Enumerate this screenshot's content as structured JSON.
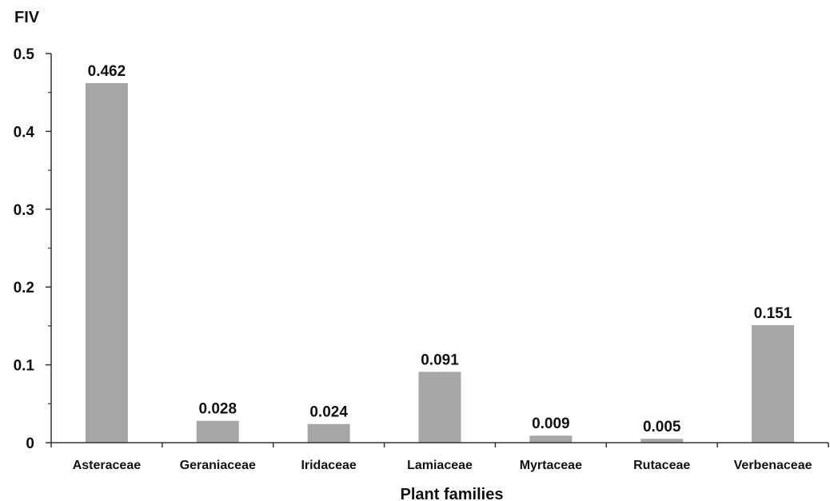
{
  "chart_data": {
    "type": "bar",
    "title": "",
    "ylabel": "FIV",
    "xlabel": "Plant families",
    "categories": [
      "Asteraceae",
      "Geraniaceae",
      "Iridaceae",
      "Lamiaceae",
      "Myrtaceae",
      "Rutaceae",
      "Verbenaceae"
    ],
    "values": [
      0.462,
      0.028,
      0.024,
      0.091,
      0.009,
      0.005,
      0.151
    ],
    "data_labels": [
      "0.462",
      "0.028",
      "0.024",
      "0.091",
      "0.009",
      "0.005",
      "0.151"
    ],
    "ylim": [
      0,
      0.5
    ],
    "yticks": [
      0,
      0.1,
      0.2,
      0.3,
      0.4,
      0.5
    ],
    "ytick_labels": [
      "0",
      "0.1",
      "0.2",
      "0.3",
      "0.4",
      "0.5"
    ],
    "minor_ticks_per_interval": 2,
    "grid": false,
    "legend": "none",
    "bar_color": "#a6a6a6",
    "axis_color": "#333333"
  }
}
